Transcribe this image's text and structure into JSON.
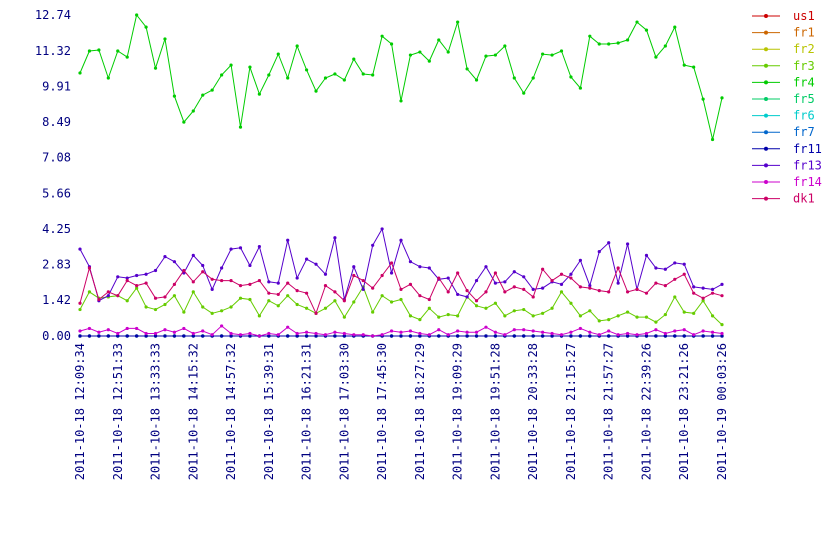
{
  "chart_data": {
    "type": "line",
    "categories": [
      "2011-10-18 12:09:34",
      null,
      null,
      null,
      "2011-10-18 12:51:33",
      null,
      null,
      null,
      "2011-10-18 13:33:33",
      null,
      null,
      null,
      "2011-10-18 14:15:32",
      null,
      null,
      null,
      "2011-10-18 14:57:32",
      null,
      null,
      null,
      "2011-10-18 15:39:31",
      null,
      null,
      null,
      "2011-10-18 16:21:31",
      null,
      null,
      null,
      "2011-10-18 17:03:30",
      null,
      null,
      null,
      "2011-10-18 17:45:30",
      null,
      null,
      null,
      "2011-10-18 18:27:29",
      null,
      null,
      null,
      "2011-10-18 19:09:29",
      null,
      null,
      null,
      "2011-10-18 19:51:28",
      null,
      null,
      null,
      "2011-10-18 20:33:28",
      null,
      null,
      null,
      "2011-10-18 21:15:27",
      null,
      null,
      null,
      "2011-10-18 21:57:27",
      null,
      null,
      null,
      "2011-10-18 22:39:26",
      null,
      null,
      null,
      "2011-10-18 23:21:26",
      null,
      null,
      null,
      "2011-10-19 00:03:26"
    ],
    "ylim": [
      0,
      12.74
    ],
    "yticks": [
      {
        "value": 0,
        "label": "0.00"
      },
      1.42,
      2.83,
      4.25,
      5.66,
      7.08,
      8.49,
      9.91,
      11.32,
      12.74
    ],
    "grid": false,
    "legend": "right",
    "series": [
      {
        "name": "us1",
        "color": "#cc0000",
        "values": [
          0,
          0,
          0,
          0,
          0,
          0,
          0,
          0,
          0,
          0,
          0,
          0,
          0,
          0,
          0,
          0,
          0,
          0,
          0,
          0,
          0,
          0,
          0,
          0,
          0,
          0,
          0,
          0,
          0,
          0,
          0,
          0,
          0,
          0,
          0,
          0,
          0,
          0,
          0,
          0,
          0,
          0,
          0,
          0,
          0,
          0,
          0,
          0,
          0,
          0,
          0,
          0,
          0,
          0,
          0,
          0,
          0,
          0,
          0,
          0,
          0,
          0,
          0,
          0,
          0,
          0,
          0,
          0,
          0
        ]
      },
      {
        "name": "fr1",
        "color": "#cc6600",
        "values": [
          0,
          0,
          0,
          0,
          0,
          0,
          0,
          0,
          0,
          0,
          0,
          0,
          0,
          0,
          0,
          0,
          0,
          0,
          0,
          0,
          0,
          0,
          0,
          0,
          0,
          0,
          0,
          0,
          0,
          0,
          0,
          0,
          0,
          0,
          0,
          0,
          0,
          0,
          0,
          0,
          0,
          0,
          0,
          0,
          0,
          0,
          0,
          0,
          0,
          0,
          0,
          0,
          0,
          0,
          0,
          0,
          0,
          0,
          0,
          0,
          0,
          0,
          0,
          0,
          0,
          0,
          0,
          0,
          0
        ]
      },
      {
        "name": "fr2",
        "color": "#b8c400",
        "values": [
          0,
          0,
          0,
          0,
          0,
          0,
          0,
          0,
          0,
          0,
          0,
          0,
          0,
          0,
          0,
          0,
          0,
          0,
          0,
          0,
          0,
          0,
          0,
          0,
          0,
          0,
          0,
          0,
          0,
          0,
          0,
          0,
          0,
          0,
          0,
          0,
          0,
          0,
          0,
          0,
          0,
          0,
          0,
          0,
          0,
          0,
          0,
          0,
          0,
          0,
          0,
          0,
          0,
          0,
          0,
          0,
          0,
          0,
          0,
          0,
          0,
          0,
          0,
          0,
          0,
          0,
          0,
          0,
          0
        ]
      },
      {
        "name": "fr3",
        "color": "#66cc00",
        "values": [
          1.05,
          1.75,
          1.5,
          1.55,
          1.6,
          1.4,
          1.9,
          1.15,
          1.05,
          1.25,
          1.6,
          0.95,
          1.75,
          1.15,
          0.9,
          1.0,
          1.15,
          1.5,
          1.45,
          0.8,
          1.4,
          1.2,
          1.6,
          1.25,
          1.1,
          0.9,
          1.1,
          1.4,
          0.75,
          1.35,
          1.95,
          0.95,
          1.6,
          1.35,
          1.45,
          0.8,
          0.65,
          1.1,
          0.75,
          0.85,
          0.8,
          1.55,
          1.2,
          1.1,
          1.3,
          0.8,
          1.0,
          1.05,
          0.8,
          0.9,
          1.1,
          1.75,
          1.3,
          0.8,
          1.0,
          0.6,
          0.65,
          0.8,
          0.95,
          0.75,
          0.75,
          0.55,
          0.85,
          1.55,
          0.95,
          0.9,
          1.4,
          0.8,
          0.45
        ]
      },
      {
        "name": "fr4",
        "color": "#00cc00",
        "values": [
          10.44,
          11.31,
          11.35,
          10.24,
          11.31,
          11.07,
          12.74,
          12.26,
          10.63,
          11.79,
          9.52,
          8.49,
          8.93,
          9.56,
          9.76,
          10.36,
          10.75,
          8.29,
          10.67,
          9.6,
          10.36,
          11.19,
          10.24,
          11.51,
          10.56,
          9.72,
          10.24,
          10.4,
          10.16,
          10.99,
          10.4,
          10.36,
          11.9,
          11.59,
          9.33,
          11.15,
          11.27,
          10.91,
          11.75,
          11.27,
          12.46,
          10.6,
          10.16,
          11.11,
          11.15,
          11.51,
          10.24,
          9.64,
          10.24,
          11.19,
          11.15,
          11.31,
          10.28,
          9.84,
          11.9,
          11.59,
          11.59,
          11.63,
          11.75,
          12.46,
          12.14,
          11.07,
          11.51,
          12.26,
          10.75,
          10.67,
          9.4,
          7.8,
          9.45
        ]
      },
      {
        "name": "fr5",
        "color": "#00cc66",
        "values": [
          0,
          0,
          0,
          0,
          0,
          0,
          0,
          0,
          0,
          0,
          0,
          0,
          0,
          0,
          0,
          0,
          0,
          0,
          0,
          0,
          0,
          0,
          0,
          0,
          0,
          0,
          0,
          0,
          0,
          0,
          0,
          0,
          0,
          0,
          0,
          0,
          0,
          0,
          0,
          0,
          0,
          0,
          0,
          0,
          0,
          0,
          0,
          0,
          0,
          0,
          0,
          0,
          0,
          0,
          0,
          0,
          0,
          0,
          0,
          0,
          0,
          0,
          0,
          0,
          0,
          0,
          0,
          0,
          0
        ]
      },
      {
        "name": "fr6",
        "color": "#00cccc",
        "values": [
          0,
          0,
          0,
          0,
          0,
          0,
          0,
          0,
          0,
          0,
          0,
          0,
          0,
          0,
          0,
          0,
          0,
          0,
          0,
          0,
          0,
          0,
          0,
          0,
          0,
          0,
          0,
          0,
          0,
          0,
          0,
          0,
          0,
          0,
          0,
          0,
          0,
          0,
          0,
          0,
          0,
          0,
          0,
          0,
          0,
          0,
          0,
          0,
          0,
          0,
          0,
          0,
          0,
          0,
          0,
          0,
          0,
          0,
          0,
          0,
          0,
          0,
          0,
          0,
          0,
          0,
          0,
          0,
          0
        ]
      },
      {
        "name": "fr7",
        "color": "#0066cc",
        "values": [
          0,
          0,
          0,
          0,
          0,
          0,
          0,
          0,
          0,
          0,
          0,
          0,
          0,
          0,
          0,
          0,
          0,
          0,
          0,
          0,
          0,
          0,
          0,
          0,
          0,
          0,
          0,
          0,
          0,
          0,
          0,
          0,
          0,
          0,
          0,
          0,
          0,
          0,
          0,
          0,
          0,
          0,
          0,
          0,
          0,
          0,
          0,
          0,
          0,
          0,
          0,
          0,
          0,
          0,
          0,
          0,
          0,
          0,
          0,
          0,
          0,
          0,
          0,
          0,
          0,
          0,
          0,
          0,
          0
        ]
      },
      {
        "name": "fr11",
        "color": "#0000aa",
        "values": [
          0,
          0,
          0,
          0,
          0,
          0,
          0,
          0,
          0,
          0,
          0,
          0,
          0,
          0,
          0,
          0,
          0,
          0,
          0,
          0,
          0,
          0,
          0,
          0,
          0,
          0,
          0,
          0,
          0,
          0,
          0,
          0,
          0,
          0,
          0,
          0,
          0,
          0,
          0,
          0,
          0,
          0,
          0,
          0,
          0,
          0,
          0,
          0,
          0,
          0,
          0,
          0,
          0,
          0,
          0,
          0,
          0,
          0,
          0,
          0,
          0,
          0,
          0,
          0,
          0,
          0,
          0,
          0,
          0
        ]
      },
      {
        "name": "fr13",
        "color": "#5500cc",
        "values": [
          3.45,
          2.75,
          1.4,
          1.6,
          2.35,
          2.3,
          2.4,
          2.45,
          2.6,
          3.15,
          2.95,
          2.5,
          3.2,
          2.8,
          1.85,
          2.7,
          3.45,
          3.5,
          2.8,
          3.55,
          2.15,
          2.1,
          3.8,
          2.3,
          3.05,
          2.85,
          2.45,
          3.9,
          1.45,
          2.75,
          1.85,
          3.6,
          4.25,
          2.5,
          3.8,
          2.95,
          2.75,
          2.7,
          2.25,
          2.3,
          1.65,
          1.55,
          2.2,
          2.75,
          2.1,
          2.15,
          2.55,
          2.35,
          1.85,
          1.9,
          2.15,
          2.05,
          2.45,
          3.0,
          2.0,
          3.35,
          3.7,
          2.1,
          3.65,
          1.85,
          3.2,
          2.7,
          2.65,
          2.9,
          2.85,
          1.95,
          1.9,
          1.85,
          2.05
        ]
      },
      {
        "name": "fr14",
        "color": "#cc00cc",
        "values": [
          0.2,
          0.3,
          0.15,
          0.25,
          0.1,
          0.3,
          0.3,
          0.1,
          0.1,
          0.25,
          0.15,
          0.3,
          0.1,
          0.2,
          0.05,
          0.4,
          0.1,
          0.05,
          0.1,
          0.0,
          0.1,
          0.05,
          0.35,
          0.1,
          0.15,
          0.1,
          0.05,
          0.15,
          0.1,
          0.05,
          0.05,
          0.0,
          0.05,
          0.2,
          0.15,
          0.2,
          0.1,
          0.05,
          0.25,
          0.05,
          0.2,
          0.15,
          0.15,
          0.35,
          0.15,
          0.05,
          0.25,
          0.25,
          0.2,
          0.15,
          0.1,
          0.05,
          0.15,
          0.3,
          0.15,
          0.05,
          0.2,
          0.05,
          0.1,
          0.05,
          0.1,
          0.25,
          0.1,
          0.2,
          0.25,
          0.05,
          0.2,
          0.15,
          0.1
        ]
      },
      {
        "name": "dk1",
        "color": "#cc0066",
        "values": [
          1.3,
          2.7,
          1.45,
          1.75,
          1.6,
          2.2,
          2.0,
          2.1,
          1.5,
          1.55,
          2.05,
          2.6,
          2.15,
          2.55,
          2.25,
          2.2,
          2.2,
          2.0,
          2.05,
          2.2,
          1.7,
          1.65,
          2.1,
          1.8,
          1.7,
          0.9,
          2.0,
          1.75,
          1.4,
          2.4,
          2.2,
          1.9,
          2.4,
          2.9,
          1.85,
          2.05,
          1.6,
          1.45,
          2.3,
          1.75,
          2.5,
          1.8,
          1.4,
          1.75,
          2.5,
          1.75,
          1.95,
          1.85,
          1.55,
          2.65,
          2.2,
          2.45,
          2.3,
          1.95,
          1.9,
          1.8,
          1.75,
          2.7,
          1.75,
          1.85,
          1.7,
          2.1,
          2.0,
          2.25,
          2.45,
          1.7,
          1.5,
          1.7,
          1.6
        ]
      }
    ]
  }
}
